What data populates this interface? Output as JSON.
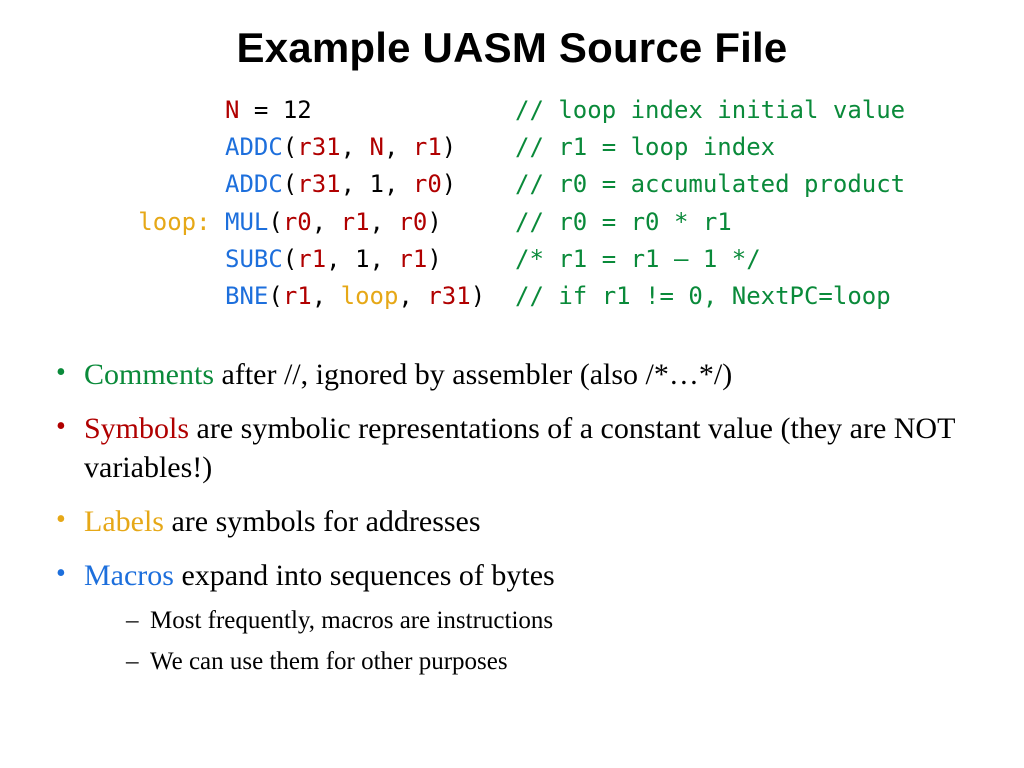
{
  "title": "Example UASM Source File",
  "colors": {
    "symbol": "#b00000",
    "macro": "#1d6fdc",
    "label": "#e6a817",
    "comment": "#0a8a3a",
    "text": "#000000",
    "background": "#ffffff"
  },
  "fonts": {
    "title_family": "Trebuchet MS",
    "title_size_pt": 32,
    "title_weight": 700,
    "body_family": "Georgia",
    "body_size_pt": 22,
    "code_family": "Consolas",
    "code_size_pt": 18
  },
  "code": {
    "lines": [
      {
        "label": "",
        "instr": [
          {
            "t": "N",
            "c": "symbol"
          },
          {
            "t": " = ",
            "c": "black"
          },
          {
            "t": "12",
            "c": "black"
          }
        ],
        "comment": "// loop index initial value"
      },
      {
        "label": "",
        "instr": [
          {
            "t": "ADDC",
            "c": "macro"
          },
          {
            "t": "(",
            "c": "black"
          },
          {
            "t": "r31",
            "c": "reg"
          },
          {
            "t": ", ",
            "c": "black"
          },
          {
            "t": "N",
            "c": "symbol"
          },
          {
            "t": ", ",
            "c": "black"
          },
          {
            "t": "r1",
            "c": "reg"
          },
          {
            "t": ")",
            "c": "black"
          }
        ],
        "comment": "// r1 = loop index"
      },
      {
        "label": "",
        "instr": [
          {
            "t": "ADDC",
            "c": "macro"
          },
          {
            "t": "(",
            "c": "black"
          },
          {
            "t": "r31",
            "c": "reg"
          },
          {
            "t": ", ",
            "c": "black"
          },
          {
            "t": "1",
            "c": "black"
          },
          {
            "t": ", ",
            "c": "black"
          },
          {
            "t": "r0",
            "c": "reg"
          },
          {
            "t": ")",
            "c": "black"
          }
        ],
        "comment": "// r0 = accumulated product"
      },
      {
        "label": "loop:",
        "instr": [
          {
            "t": "MUL",
            "c": "macro"
          },
          {
            "t": "(",
            "c": "black"
          },
          {
            "t": "r0",
            "c": "reg"
          },
          {
            "t": ", ",
            "c": "black"
          },
          {
            "t": "r1",
            "c": "reg"
          },
          {
            "t": ", ",
            "c": "black"
          },
          {
            "t": "r0",
            "c": "reg"
          },
          {
            "t": ")",
            "c": "black"
          }
        ],
        "comment": "// r0 = r0 * r1"
      },
      {
        "label": "",
        "instr": [
          {
            "t": "SUBC",
            "c": "macro"
          },
          {
            "t": "(",
            "c": "black"
          },
          {
            "t": "r1",
            "c": "reg"
          },
          {
            "t": ", ",
            "c": "black"
          },
          {
            "t": "1",
            "c": "black"
          },
          {
            "t": ", ",
            "c": "black"
          },
          {
            "t": "r1",
            "c": "reg"
          },
          {
            "t": ")",
            "c": "black"
          }
        ],
        "comment": "/* r1 = r1 – 1 */"
      },
      {
        "label": "",
        "instr": [
          {
            "t": "BNE",
            "c": "macro"
          },
          {
            "t": "(",
            "c": "black"
          },
          {
            "t": "r1",
            "c": "reg"
          },
          {
            "t": ", ",
            "c": "black"
          },
          {
            "t": "loop",
            "c": "label"
          },
          {
            "t": ", ",
            "c": "black"
          },
          {
            "t": "r31",
            "c": "reg"
          },
          {
            "t": ")",
            "c": "black"
          }
        ],
        "comment": "// if r1 != 0, NextPC=loop"
      }
    ]
  },
  "bullets": [
    {
      "color": "green",
      "keyword": "Comments",
      "rest": " after //, ignored by assembler (also /*…*/)",
      "sub": []
    },
    {
      "color": "red",
      "keyword": "Symbols",
      "rest": " are symbolic representations of a constant value (they are NOT variables!)",
      "sub": []
    },
    {
      "color": "gold",
      "keyword": "Labels",
      "rest": " are symbols for addresses",
      "sub": []
    },
    {
      "color": "blue",
      "keyword": "Macros",
      "rest": " expand into sequences of bytes",
      "sub": [
        "Most frequently, macros are instructions",
        "We can use them for other purposes"
      ]
    }
  ]
}
